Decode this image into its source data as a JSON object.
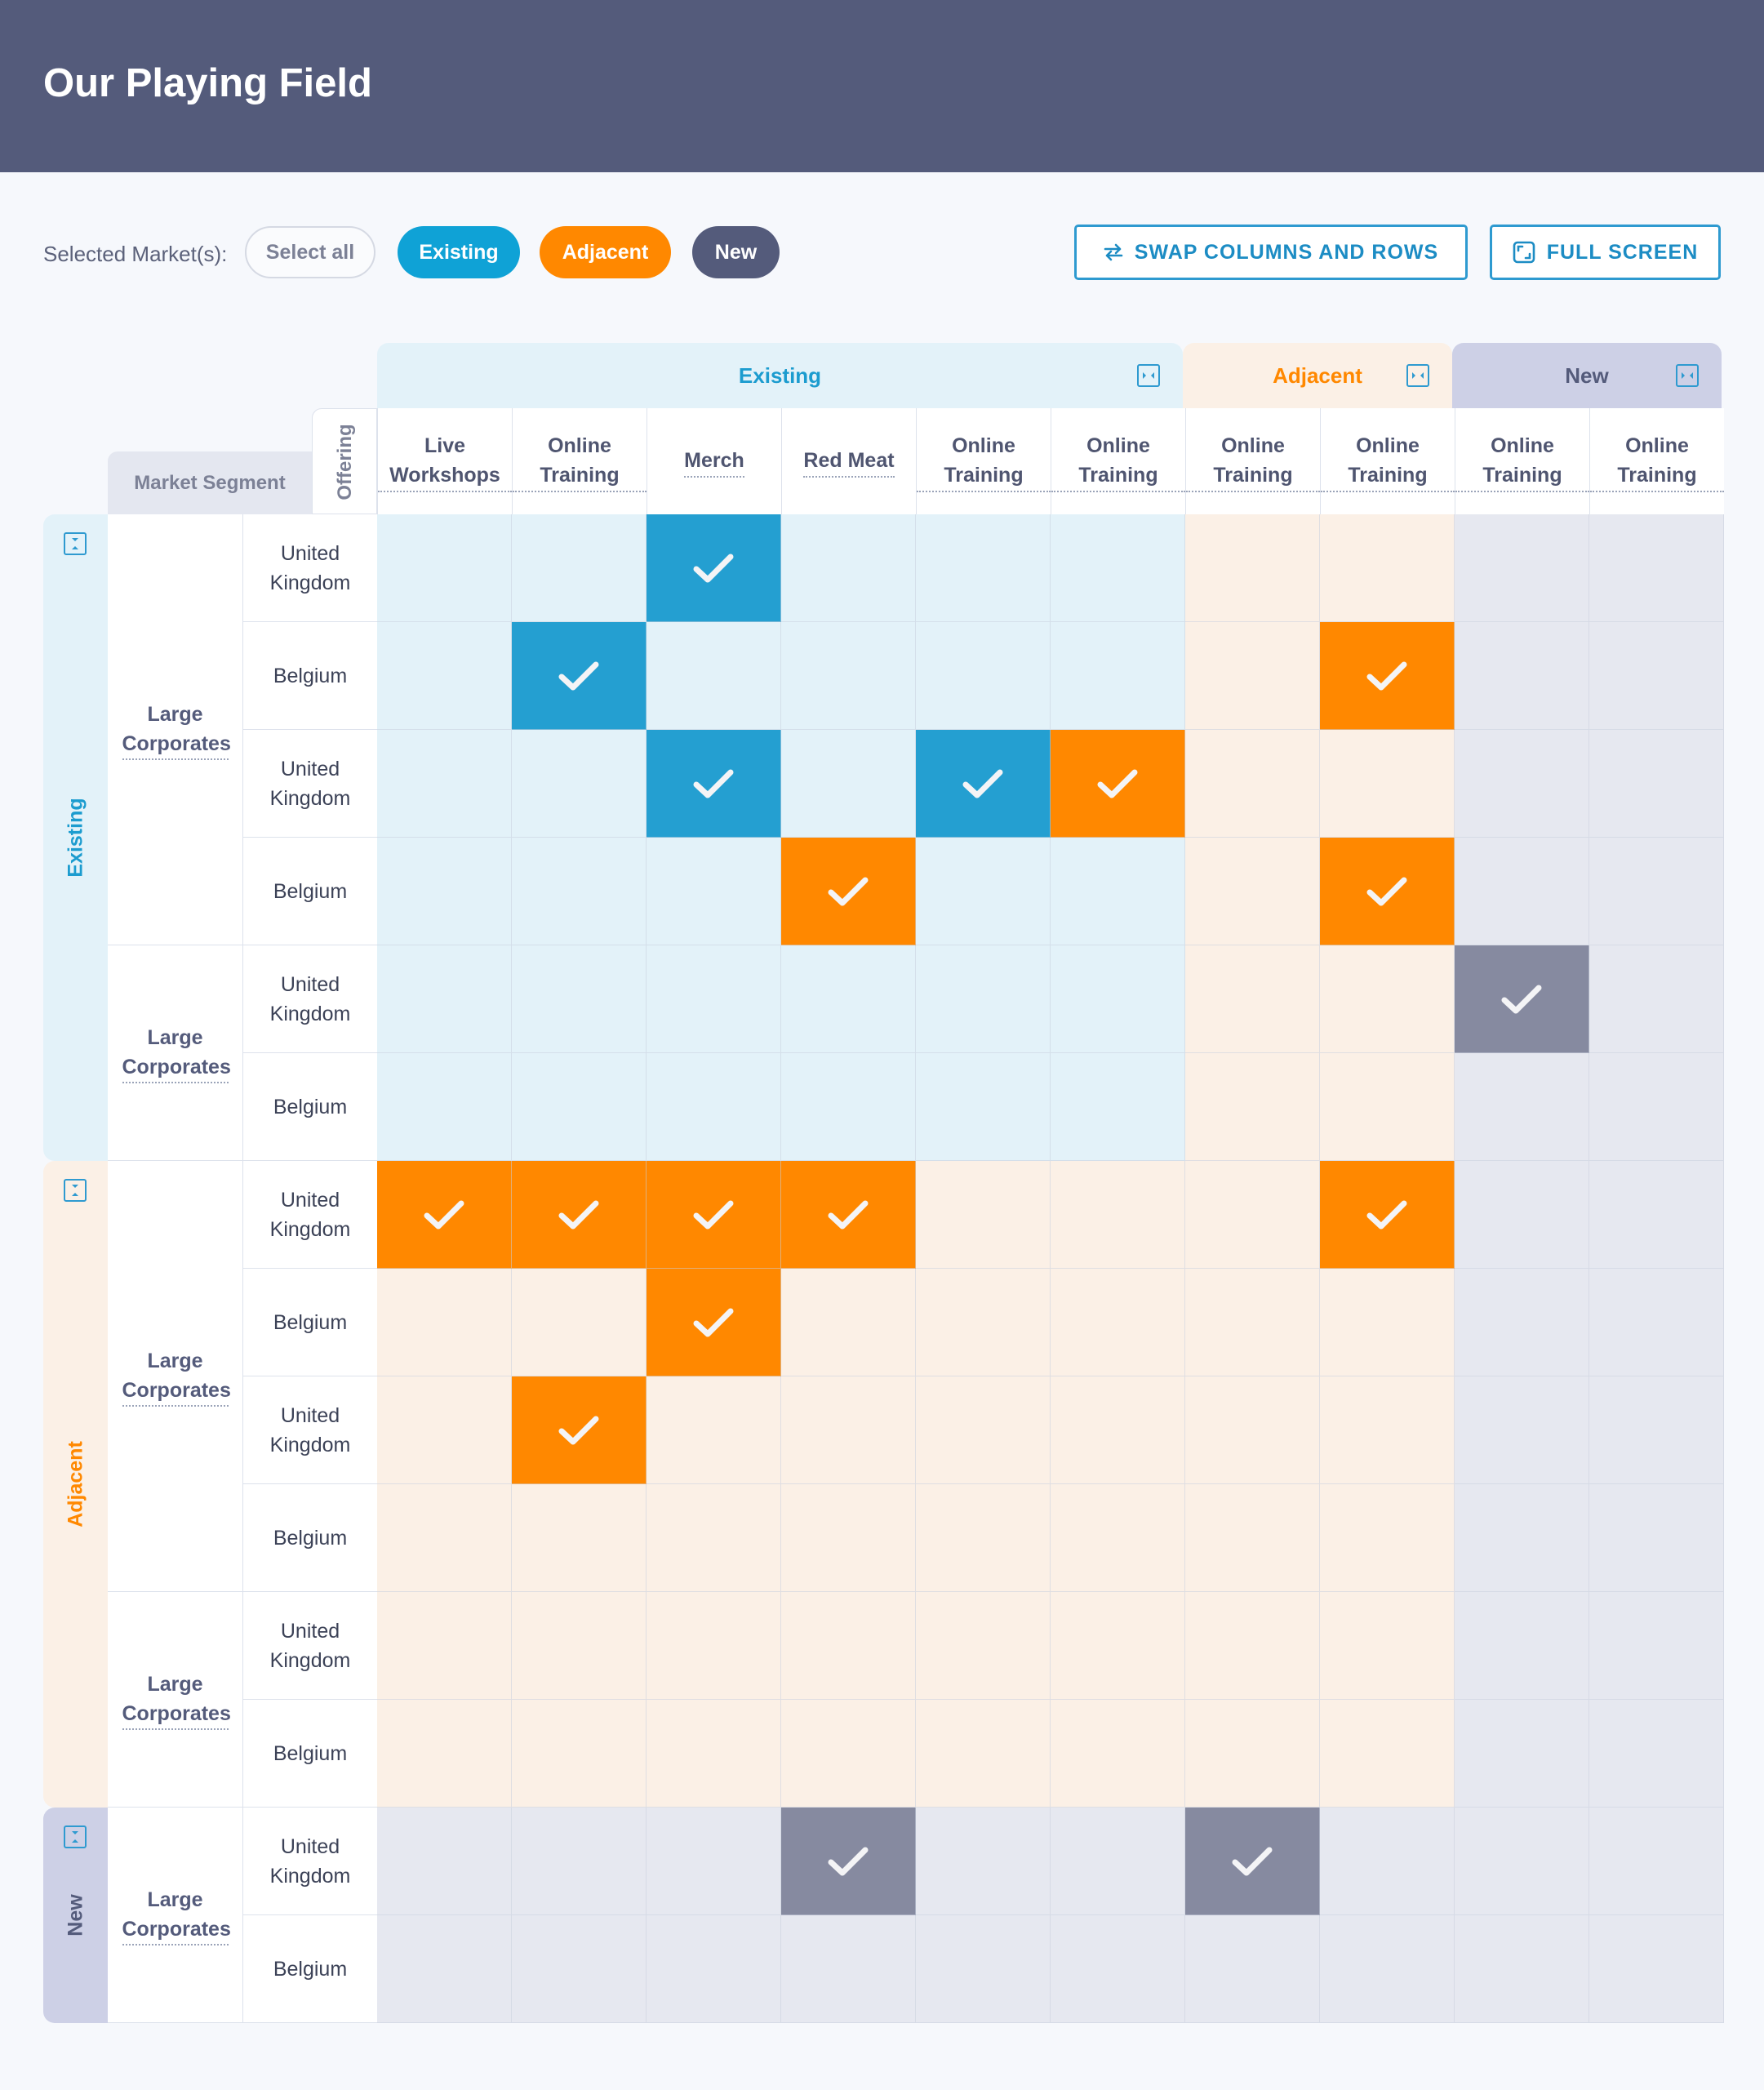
{
  "title": "Our Playing Field",
  "filter": {
    "label": "Selected Market(s):",
    "options": [
      {
        "label": "Select all",
        "selected": false
      },
      {
        "label": "Existing",
        "selected": true,
        "color": "#0fa2d6"
      },
      {
        "label": "Adjacent",
        "selected": true,
        "color": "#ff8800"
      },
      {
        "label": "New",
        "selected": true,
        "color": "#545b7b"
      }
    ]
  },
  "actions": {
    "swap_label": "SWAP COLUMNS AND ROWS",
    "fullscreen_label": "FULL SCREEN"
  },
  "colors": {
    "existing_bg": "#e3f2f9",
    "existing_text": "#1c9ccf",
    "existing_check": "#249fd1",
    "adjacent_bg": "#fbf0e6",
    "adjacent_text": "#ff8800",
    "adjacent_check": "#ff8800",
    "new_bg": "#e6e8f0",
    "new_header": "#cdd0e6",
    "new_text": "#545b7b",
    "new_check": "#868aa0"
  },
  "grid": {
    "offering_label": "Offering",
    "segment_label": "Market Segment",
    "column_groups": [
      {
        "name": "Existing",
        "key": "existing",
        "columns": 6
      },
      {
        "name": "Adjacent",
        "key": "adjacent",
        "columns": 2
      },
      {
        "name": "New",
        "key": "new",
        "columns": 2
      }
    ],
    "columns": [
      "Live Workshops",
      "Online Training",
      "Merch",
      "Red Meat",
      "Online Training",
      "Online Training",
      "Online Training",
      "Online Training",
      "Online Training",
      "Online Training"
    ],
    "row_groups": [
      {
        "name": "Existing",
        "key": "existing",
        "segments": [
          {
            "label": "Large Corporates",
            "rows": [
              "United Kingdom",
              "Belgium",
              "United Kingdom",
              "Belgium"
            ]
          },
          {
            "label": "Large Corporates",
            "rows": [
              "United Kingdom",
              "Belgium"
            ]
          }
        ]
      },
      {
        "name": "Adjacent",
        "key": "adjacent",
        "segments": [
          {
            "label": "Large Corporates",
            "rows": [
              "United Kingdom",
              "Belgium",
              "United Kingdom",
              "Belgium"
            ]
          },
          {
            "label": "Large Corporates",
            "rows": [
              "United Kingdom",
              "Belgium"
            ]
          }
        ]
      },
      {
        "name": "New",
        "key": "new",
        "segments": [
          {
            "label": "Large Corporates",
            "rows": [
              "United Kingdom",
              "Belgium"
            ]
          }
        ]
      }
    ],
    "checks": [
      {
        "row": 0,
        "col": 2,
        "type": "existing"
      },
      {
        "row": 1,
        "col": 1,
        "type": "existing"
      },
      {
        "row": 1,
        "col": 7,
        "type": "adjacent"
      },
      {
        "row": 2,
        "col": 2,
        "type": "existing"
      },
      {
        "row": 2,
        "col": 4,
        "type": "existing"
      },
      {
        "row": 2,
        "col": 5,
        "type": "adjacent"
      },
      {
        "row": 3,
        "col": 3,
        "type": "adjacent"
      },
      {
        "row": 3,
        "col": 7,
        "type": "adjacent"
      },
      {
        "row": 4,
        "col": 8,
        "type": "new"
      },
      {
        "row": 6,
        "col": 0,
        "type": "adjacent"
      },
      {
        "row": 6,
        "col": 1,
        "type": "adjacent"
      },
      {
        "row": 6,
        "col": 2,
        "type": "adjacent"
      },
      {
        "row": 6,
        "col": 3,
        "type": "adjacent"
      },
      {
        "row": 6,
        "col": 7,
        "type": "adjacent"
      },
      {
        "row": 7,
        "col": 2,
        "type": "adjacent"
      },
      {
        "row": 8,
        "col": 1,
        "type": "adjacent"
      },
      {
        "row": 12,
        "col": 3,
        "type": "new"
      },
      {
        "row": 12,
        "col": 6,
        "type": "new"
      }
    ]
  }
}
